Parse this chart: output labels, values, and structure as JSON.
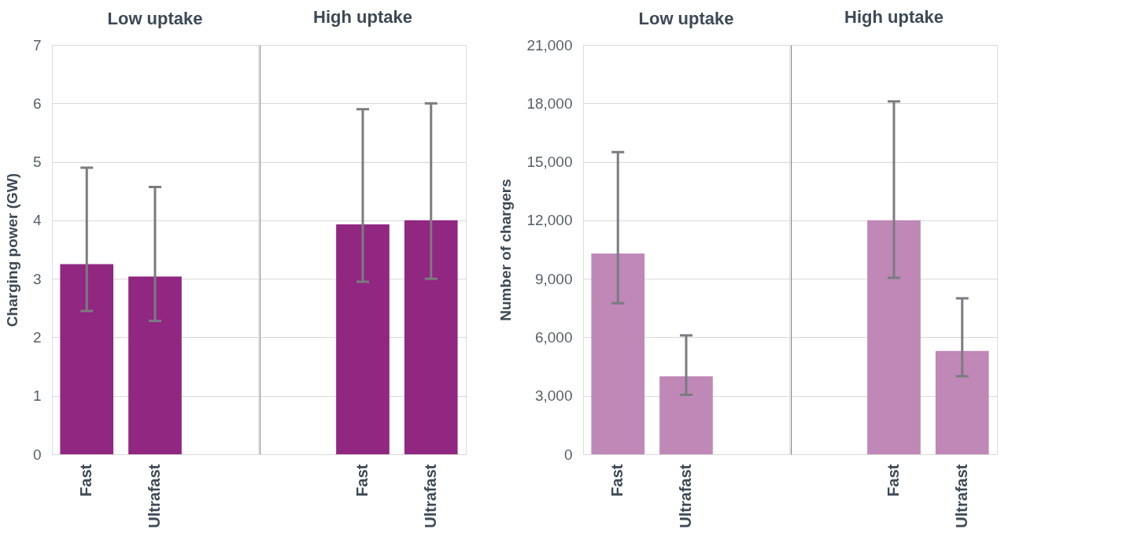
{
  "chart_data": [
    {
      "type": "bar",
      "title": "Low uptake",
      "ylabel": "Charging power (GW)",
      "categories": [
        "Fast",
        "Ultrafast",
        null
      ],
      "values": [
        3.25,
        3.04,
        null
      ],
      "errors": [
        [
          2.45,
          4.9
        ],
        [
          2.28,
          4.57
        ],
        null
      ],
      "color": "#912781",
      "ylim": [
        0,
        7
      ],
      "yticks": [
        0,
        1,
        2,
        3,
        4,
        5,
        6,
        7
      ],
      "grid": "y"
    },
    {
      "type": "bar",
      "title": "High uptake",
      "categories": [
        null,
        "Fast",
        "Ultrafast"
      ],
      "values": [
        null,
        3.93,
        4.0
      ],
      "errors": [
        null,
        [
          2.95,
          5.9
        ],
        [
          3.0,
          6.0
        ]
      ],
      "color": "#912781",
      "ylim": [
        0,
        7
      ],
      "yticks": [
        0,
        1,
        2,
        3,
        4,
        5,
        6,
        7
      ],
      "grid": "y",
      "tick_labels": "x"
    },
    {
      "type": "bar",
      "title": "Low uptake",
      "ylabel": "Number of chargers",
      "categories": [
        "Fast",
        "Ultrafast",
        null
      ],
      "values": [
        10300,
        4000,
        null
      ],
      "errors": [
        [
          7750,
          15500
        ],
        [
          3050,
          6100
        ],
        null
      ],
      "color": "#bf88b6",
      "ylim": [
        0,
        21000
      ],
      "yticks": [
        {
          "value": 0,
          "label": "0"
        },
        {
          "value": 3000,
          "label": "3,000"
        },
        {
          "value": 6000,
          "label": "6,000"
        },
        {
          "value": 9000,
          "label": "9,000"
        },
        {
          "value": 12000,
          "label": "12,000"
        },
        {
          "value": 15000,
          "label": "15,000"
        },
        {
          "value": 18000,
          "label": "18,000"
        },
        {
          "value": 21000,
          "label": "21,000"
        }
      ],
      "grid": "y"
    },
    {
      "type": "bar",
      "title": "High uptake",
      "categories": [
        null,
        "Fast",
        "Ultrafast"
      ],
      "values": [
        null,
        12000,
        5300
      ],
      "errors": [
        null,
        [
          9050,
          18100
        ],
        [
          4000,
          8000
        ]
      ],
      "color": "#bf88b6",
      "ylim": [
        0,
        21000
      ],
      "yticks": [
        0,
        3000,
        6000,
        9000,
        12000,
        15000,
        18000,
        21000
      ],
      "grid": "y",
      "tick_labels": "x"
    }
  ]
}
